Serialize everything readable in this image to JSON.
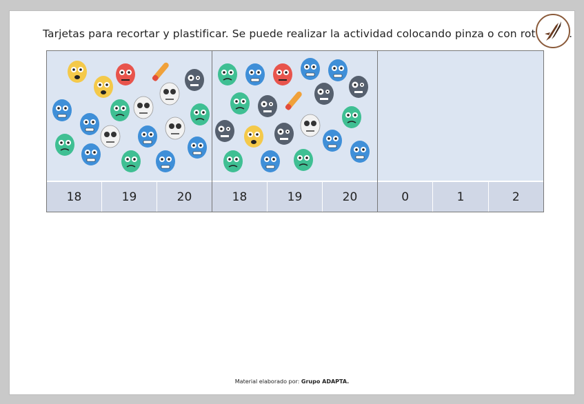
{
  "instructions": "Tarjetas para recortar y plastificar. Se puede realizar la actividad colocando pinza o con rotulador.",
  "cards": [
    {
      "numbers": [
        "18",
        "19",
        "20"
      ]
    },
    {
      "numbers": [
        "18",
        "19",
        "20"
      ]
    },
    {
      "numbers": [
        "0",
        "1",
        "2"
      ]
    }
  ],
  "footer": {
    "prefix": "Material elaborado por:",
    "author": "Grupo ADAPTA."
  },
  "icons": [
    "pen-nib-logo-icon",
    "zombie-head-icon",
    "severed-finger-icon",
    "zombie-hand-icon"
  ],
  "colors": {
    "card_bg": "#dce5f2",
    "number_bg": "#d0d7e6",
    "zombie_blue": "#3f8fd8",
    "zombie_green": "#3fbf93",
    "zombie_yellow": "#f4c94a",
    "zombie_grey": "#56606e",
    "zombie_red": "#e8544c"
  }
}
